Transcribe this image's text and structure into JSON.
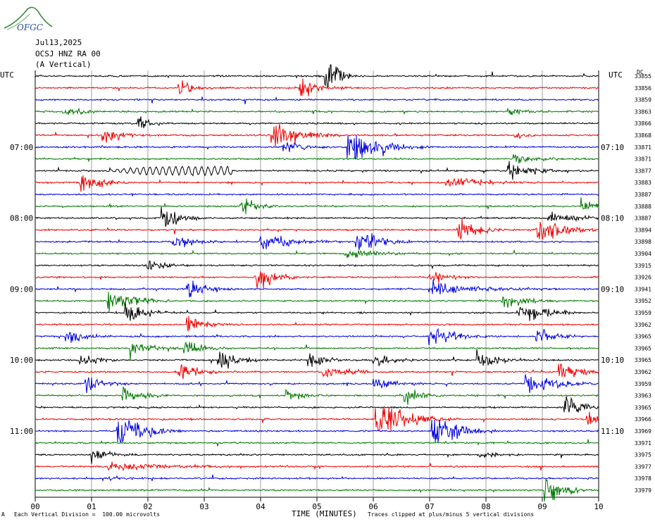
{
  "logo": {
    "text": "OFGC",
    "icon": "ofgc-logo-icon"
  },
  "header": {
    "date": "Jul13,2025",
    "station": "OCSJ HNZ RA 00",
    "component": "(A Vertical)",
    "left_tz": "UTC",
    "right_tz": "UTC",
    "scale_tag": "DC"
  },
  "footer": {
    "xlabel": "TIME (MINUTES)",
    "scale_note": "Each Vertical Division =  100.00 microvolts",
    "clip_note": "Traces clipped at plus/minus 5 vertical divisions",
    "corner_mark": "A"
  },
  "chart_data": {
    "type": "line",
    "title": "OCSJ HNZ RA 00 (A Vertical)",
    "xlabel": "TIME (MINUTES)",
    "xlim": [
      0,
      10
    ],
    "x_ticks": [
      "00",
      "01",
      "02",
      "03",
      "04",
      "05",
      "06",
      "07",
      "08",
      "09",
      "10"
    ],
    "left_time_labels": [
      "07:00",
      "08:00",
      "09:00",
      "10:00",
      "11:00"
    ],
    "right_time_labels": [
      "07:10",
      "08:10",
      "09:10",
      "10:10",
      "11:10"
    ],
    "time_label_rows": [
      6,
      12,
      18,
      24,
      30
    ],
    "trace_colors": [
      "#000000",
      "#ee0000",
      "#0000dd",
      "#007700"
    ],
    "right_values": [
      "33855",
      "33856",
      "33859",
      "33863",
      "33866",
      "33868",
      "33871",
      "33871",
      "33877",
      "33883",
      "33887",
      "33888",
      "33887",
      "33894",
      "33898",
      "33904",
      "33915",
      "33926",
      "33941",
      "33952",
      "33959",
      "33962",
      "33965",
      "33965",
      "33965",
      "33962",
      "33959",
      "33963",
      "33965",
      "33966",
      "33969",
      "33971",
      "33975",
      "33977",
      "33978",
      "33979"
    ],
    "events": [
      {
        "row": 0,
        "t": 5.15,
        "amp": 5,
        "dur": 0.15
      },
      {
        "row": 1,
        "t": 2.55,
        "amp": 1,
        "dur": 0.3
      },
      {
        "row": 1,
        "t": 4.7,
        "amp": 1.3,
        "dur": 0.3
      },
      {
        "row": 3,
        "t": 0.5,
        "amp": 0.5,
        "dur": 0.4
      },
      {
        "row": 3,
        "t": 8.4,
        "amp": 0.6,
        "dur": 0.3
      },
      {
        "row": 4,
        "t": 1.82,
        "amp": 1.3,
        "dur": 0.2
      },
      {
        "row": 5,
        "t": 1.2,
        "amp": 1.2,
        "dur": 0.3
      },
      {
        "row": 5,
        "t": 4.2,
        "amp": 2.5,
        "dur": 0.4
      },
      {
        "row": 5,
        "t": 8.5,
        "amp": 0.6,
        "dur": 0.2
      },
      {
        "row": 6,
        "t": 4.4,
        "amp": 1,
        "dur": 0.3
      },
      {
        "row": 6,
        "t": 5.55,
        "amp": 2.5,
        "dur": 0.5
      },
      {
        "row": 7,
        "t": 8.5,
        "amp": 0.6,
        "dur": 0.5
      },
      {
        "row": 8,
        "t": 8.4,
        "amp": 1,
        "dur": 0.5
      },
      {
        "row": 9,
        "t": 0.8,
        "amp": 1.6,
        "dur": 0.3
      },
      {
        "row": 9,
        "t": 7.3,
        "amp": 0.8,
        "dur": 0.6
      },
      {
        "row": 11,
        "t": 3.65,
        "amp": 1.2,
        "dur": 0.3
      },
      {
        "row": 11,
        "t": 9.7,
        "amp": 1.2,
        "dur": 0.3
      },
      {
        "row": 12,
        "t": 2.25,
        "amp": 1.5,
        "dur": 0.3
      },
      {
        "row": 12,
        "t": 9.1,
        "amp": 1,
        "dur": 0.4
      },
      {
        "row": 13,
        "t": 7.5,
        "amp": 1.8,
        "dur": 0.3
      },
      {
        "row": 13,
        "t": 8.9,
        "amp": 1.8,
        "dur": 0.4
      },
      {
        "row": 14,
        "t": 2.45,
        "amp": 1.2,
        "dur": 0.3
      },
      {
        "row": 14,
        "t": 4.0,
        "amp": 1.2,
        "dur": 0.5
      },
      {
        "row": 14,
        "t": 5.7,
        "amp": 1.6,
        "dur": 0.4
      },
      {
        "row": 15,
        "t": 5.5,
        "amp": 0.8,
        "dur": 0.5
      },
      {
        "row": 16,
        "t": 2.0,
        "amp": 0.8,
        "dur": 0.3
      },
      {
        "row": 17,
        "t": 3.9,
        "amp": 2,
        "dur": 0.3
      },
      {
        "row": 17,
        "t": 7.0,
        "amp": 1,
        "dur": 0.3
      },
      {
        "row": 18,
        "t": 2.7,
        "amp": 1.6,
        "dur": 0.3
      },
      {
        "row": 18,
        "t": 7.0,
        "amp": 1,
        "dur": 0.8
      },
      {
        "row": 19,
        "t": 1.3,
        "amp": 1.6,
        "dur": 0.4
      },
      {
        "row": 19,
        "t": 8.3,
        "amp": 1,
        "dur": 0.4
      },
      {
        "row": 20,
        "t": 1.6,
        "amp": 1.6,
        "dur": 0.3
      },
      {
        "row": 20,
        "t": 8.6,
        "amp": 1.6,
        "dur": 0.4
      },
      {
        "row": 21,
        "t": 2.7,
        "amp": 1.2,
        "dur": 0.3
      },
      {
        "row": 22,
        "t": 0.55,
        "amp": 1.2,
        "dur": 0.3
      },
      {
        "row": 22,
        "t": 7.0,
        "amp": 1.2,
        "dur": 0.4
      },
      {
        "row": 22,
        "t": 8.9,
        "amp": 1.2,
        "dur": 0.3
      },
      {
        "row": 23,
        "t": 1.7,
        "amp": 1.2,
        "dur": 0.3
      },
      {
        "row": 23,
        "t": 2.65,
        "amp": 1.2,
        "dur": 0.3
      },
      {
        "row": 24,
        "t": 0.8,
        "amp": 1,
        "dur": 0.3
      },
      {
        "row": 24,
        "t": 3.25,
        "amp": 1.5,
        "dur": 0.3
      },
      {
        "row": 24,
        "t": 4.85,
        "amp": 1,
        "dur": 0.3
      },
      {
        "row": 24,
        "t": 6.0,
        "amp": 1,
        "dur": 0.3
      },
      {
        "row": 24,
        "t": 7.85,
        "amp": 1.2,
        "dur": 0.3
      },
      {
        "row": 25,
        "t": 2.55,
        "amp": 1.2,
        "dur": 0.3
      },
      {
        "row": 25,
        "t": 5.1,
        "amp": 0.8,
        "dur": 0.5
      },
      {
        "row": 25,
        "t": 9.3,
        "amp": 1.2,
        "dur": 0.4
      },
      {
        "row": 26,
        "t": 0.9,
        "amp": 1.2,
        "dur": 0.3
      },
      {
        "row": 26,
        "t": 6.0,
        "amp": 1.2,
        "dur": 0.3
      },
      {
        "row": 26,
        "t": 8.7,
        "amp": 1.5,
        "dur": 0.5
      },
      {
        "row": 27,
        "t": 1.55,
        "amp": 1.2,
        "dur": 0.3
      },
      {
        "row": 27,
        "t": 4.45,
        "amp": 0.8,
        "dur": 0.3
      },
      {
        "row": 27,
        "t": 6.55,
        "amp": 1,
        "dur": 0.3
      },
      {
        "row": 28,
        "t": 9.4,
        "amp": 2,
        "dur": 0.3
      },
      {
        "row": 29,
        "t": 6.05,
        "amp": 2.5,
        "dur": 0.5
      },
      {
        "row": 29,
        "t": 6.4,
        "amp": 1.2,
        "dur": 0.3
      },
      {
        "row": 29,
        "t": 9.8,
        "amp": 1,
        "dur": 0.2
      },
      {
        "row": 30,
        "t": 1.45,
        "amp": 2.5,
        "dur": 0.4
      },
      {
        "row": 30,
        "t": 7.05,
        "amp": 2.5,
        "dur": 0.4
      },
      {
        "row": 32,
        "t": 1.0,
        "amp": 1,
        "dur": 0.3
      },
      {
        "row": 32,
        "t": 7.9,
        "amp": 0.5,
        "dur": 0.3
      },
      {
        "row": 33,
        "t": 1.3,
        "amp": 0.6,
        "dur": 1.0
      },
      {
        "row": 34,
        "t": 1.2,
        "amp": 0.3,
        "dur": 0.5
      },
      {
        "row": 35,
        "t": 9.05,
        "amp": 2.2,
        "dur": 0.3
      }
    ],
    "sinusoid": {
      "row": 8,
      "t_start": 1.2,
      "t_end": 3.5,
      "cycles": 20,
      "amp": 0.6
    }
  }
}
